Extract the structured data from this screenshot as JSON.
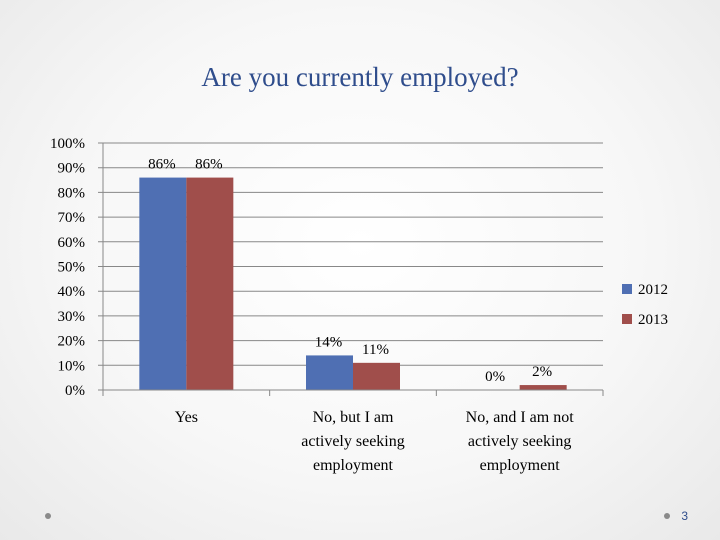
{
  "slide": {
    "title": "Are you currently employed?",
    "page_number": "3"
  },
  "chart_data": {
    "type": "bar",
    "title": "",
    "xlabel": "",
    "ylabel": "",
    "categories": [
      "Yes",
      "No, but I am actively seeking employment",
      "No, and I am not actively seeking employment"
    ],
    "category_lines": [
      [
        "Yes"
      ],
      [
        "No, but I am",
        "actively seeking",
        "employment"
      ],
      [
        "No, and I am not",
        "actively seeking",
        "employment"
      ]
    ],
    "series": [
      {
        "name": "2012",
        "color": "#4f6fb3",
        "values": [
          86,
          14,
          0
        ],
        "labels": [
          "86%",
          "14%",
          "0%"
        ]
      },
      {
        "name": "2013",
        "color": "#a04e4b",
        "values": [
          86,
          11,
          2
        ],
        "labels": [
          "86%",
          "11%",
          "2%"
        ]
      }
    ],
    "ylim": [
      0,
      100
    ],
    "yticks": [
      "0%",
      "10%",
      "20%",
      "30%",
      "40%",
      "50%",
      "60%",
      "70%",
      "80%",
      "90%",
      "100%"
    ],
    "grid": true,
    "legend_position": "right"
  }
}
